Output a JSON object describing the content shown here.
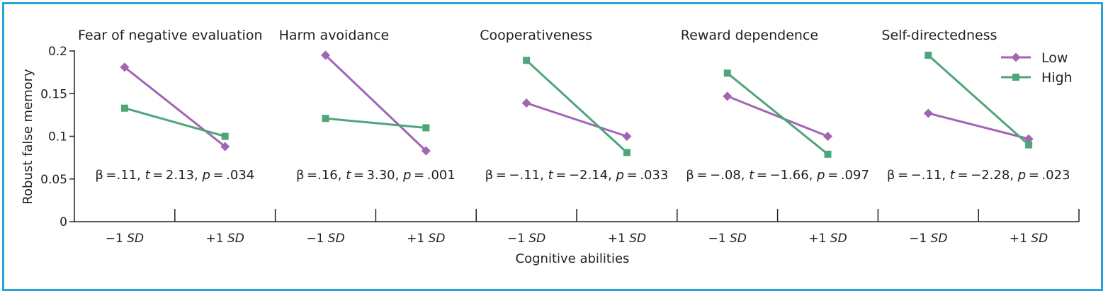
{
  "figure": {
    "ylabel": "Robust false memory",
    "xlabel": "Cognitive abilities",
    "yticks": [
      "0",
      "0.05",
      "0.1",
      "0.15",
      "0.2"
    ],
    "legend": [
      {
        "label": "Low",
        "color": "#a066b4",
        "marker": "diamond"
      },
      {
        "label": "High",
        "color": "#4ea57a",
        "marker": "square"
      }
    ]
  },
  "chart_data": [
    {
      "type": "line",
      "title": "Fear of negative evaluation",
      "categories": [
        "−1 SD",
        "+1 SD"
      ],
      "ylim": [
        0,
        0.2
      ],
      "series": [
        {
          "name": "Low",
          "values": [
            0.181,
            0.088
          ]
        },
        {
          "name": "High",
          "values": [
            0.133,
            0.1
          ]
        }
      ],
      "stat": {
        "beta": "β =.11, ",
        "t_label": "t",
        "t_val": " = 2.13, ",
        "p_label": "p",
        "p_val": " = .034"
      }
    },
    {
      "type": "line",
      "title": "Harm avoidance",
      "categories": [
        "−1 SD",
        "+1 SD"
      ],
      "ylim": [
        0,
        0.2
      ],
      "series": [
        {
          "name": "Low",
          "values": [
            0.195,
            0.083
          ]
        },
        {
          "name": "High",
          "values": [
            0.121,
            0.11
          ]
        }
      ],
      "stat": {
        "beta": "β =.16, ",
        "t_label": "t",
        "t_val": " = 3.30, ",
        "p_label": "p",
        "p_val": " = .001"
      }
    },
    {
      "type": "line",
      "title": "Cooperativeness",
      "categories": [
        "−1 SD",
        "+1 SD"
      ],
      "ylim": [
        0,
        0.2
      ],
      "series": [
        {
          "name": "Low",
          "values": [
            0.139,
            0.1
          ]
        },
        {
          "name": "High",
          "values": [
            0.189,
            0.081
          ]
        }
      ],
      "stat": {
        "beta": "β = −.11, ",
        "t_label": "t",
        "t_val": " = −2.14, ",
        "p_label": "p",
        "p_val": " = .033"
      }
    },
    {
      "type": "line",
      "title": "Reward dependence",
      "categories": [
        "−1 SD",
        "+1 SD"
      ],
      "ylim": [
        0,
        0.2
      ],
      "series": [
        {
          "name": "Low",
          "values": [
            0.147,
            0.1
          ]
        },
        {
          "name": "High",
          "values": [
            0.174,
            0.079
          ]
        }
      ],
      "stat": {
        "beta": "β = −.08, ",
        "t_label": "t",
        "t_val": " = −1.66, ",
        "p_label": "p",
        "p_val": " = .097"
      }
    },
    {
      "type": "line",
      "title": "Self-directedness",
      "categories": [
        "−1 SD",
        "+1 SD"
      ],
      "ylim": [
        0,
        0.2
      ],
      "series": [
        {
          "name": "Low",
          "values": [
            0.127,
            0.097
          ]
        },
        {
          "name": "High",
          "values": [
            0.195,
            0.09
          ]
        }
      ],
      "stat": {
        "beta": "β = −.11, ",
        "t_label": "t",
        "t_val": " = −2.28, ",
        "p_label": "p",
        "p_val": " = .023"
      }
    }
  ]
}
